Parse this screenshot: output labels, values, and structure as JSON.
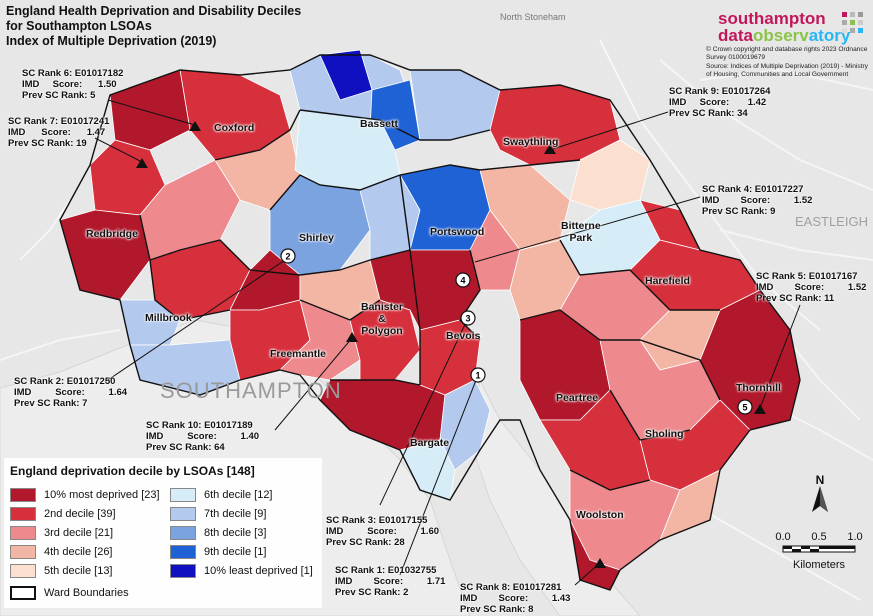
{
  "title": {
    "line1": "England Health Deprivation and Disability Deciles",
    "line2": "for Southampton LSOAs",
    "line3": "Index of Multiple Deprivation (2019)"
  },
  "logo": {
    "line1": "southampton",
    "line2a": "data",
    "line2b": "observ",
    "line2c": "atory"
  },
  "credit": {
    "line1": "© Crown copyright and database rights 2023 Ordnance Survey 0100019679",
    "line2": "Source: Indices of Multiple Deprivation (2019) - Ministry of Housing, Communities and Local Government"
  },
  "wards": {
    "coxford": "Coxford",
    "bassett": "Bassett",
    "swaythling": "Swaythling",
    "redbridge": "Redbridge",
    "shirley": "Shirley",
    "portswood": "Portswood",
    "bitterne1": "Bitterne",
    "bitterne2": "Park",
    "harefield": "Harefield",
    "millbrook": "Millbrook",
    "banister1": "Banister",
    "banister2": "&",
    "banister3": "Polygon",
    "freemantle": "Freemantle",
    "bevois": "Bevois",
    "thornhill": "Thornhill",
    "peartree": "Peartree",
    "sholing": "Sholing",
    "bargate": "Bargate",
    "woolston": "Woolston"
  },
  "basemap_labels": {
    "southampton": "SOUTHAMPTON",
    "eastleigh": "EASTLEIGH",
    "north_stoneham": "North Stoneham"
  },
  "annotations": {
    "r6": {
      "l1": "SC Rank 6: E01017182",
      "l2a": "IMD",
      "l2b": "Score:",
      "l2c": "1.50",
      "l3": "Prev SC Rank: 5"
    },
    "r7": {
      "l1": "SC Rank 7: E01017241",
      "l2a": "IMD",
      "l2b": "Score:",
      "l2c": "1.47",
      "l3": "Prev SC Rank: 19"
    },
    "r9": {
      "l1": "SC Rank 9: E01017264",
      "l2a": "IMD",
      "l2b": "Score:",
      "l2c": "1.42",
      "l3": "Prev SC Rank: 34"
    },
    "r4": {
      "l1": "SC Rank 4: E01017227",
      "l2a": "IMD",
      "l2b": "Score:",
      "l2c": "1.52",
      "l3": "Prev SC Rank: 9"
    },
    "r5": {
      "l1": "SC Rank 5: E01017167",
      "l2a": "IMD",
      "l2b": "Score:",
      "l2c": "1.52",
      "l3": "Prev SC Rank: 11"
    },
    "r2": {
      "l1": "SC Rank 2: E01017250",
      "l2a": "IMD",
      "l2b": "Score:",
      "l2c": "1.64",
      "l3": "Prev SC Rank: 7"
    },
    "r10": {
      "l1": "SC Rank 10: E01017189",
      "l2a": "IMD",
      "l2b": "Score:",
      "l2c": "1.40",
      "l3": "Prev SC Rank: 64"
    },
    "r3": {
      "l1": "SC Rank 3: E01017155",
      "l2a": "IMD",
      "l2b": "Score:",
      "l2c": "1.60",
      "l3": "Prev SC Rank: 28"
    },
    "r1": {
      "l1": "SC Rank 1: E01032755",
      "l2a": "IMD",
      "l2b": "Score:",
      "l2c": "1.71",
      "l3": "Prev SC Rank: 2"
    },
    "r8": {
      "l1": "SC Rank 8: E01017281",
      "l2a": "IMD",
      "l2b": "Score:",
      "l2c": "1.43",
      "l3": "Prev SC Rank: 8"
    }
  },
  "markers": {
    "m1": "1",
    "m2": "2",
    "m3": "3",
    "m4": "4",
    "m5": "5"
  },
  "legend": {
    "title": "England deprivation decile by LSOAs [148]",
    "items": [
      {
        "label": "10% most deprived [23]",
        "color": "#b2182b"
      },
      {
        "label": "2nd decile [39]",
        "color": "#d6303c"
      },
      {
        "label": "3rd decile [21]",
        "color": "#ee8a8e"
      },
      {
        "label": "4th decile [26]",
        "color": "#f4b6a4"
      },
      {
        "label": "5th decile [13]",
        "color": "#fbe0d0"
      },
      {
        "label": "6th decile [12]",
        "color": "#d6ecf7"
      },
      {
        "label": "7th decile [9]",
        "color": "#b3c9ee"
      },
      {
        "label": "8th decile [3]",
        "color": "#7ba3e0"
      },
      {
        "label": "9th decile [1]",
        "color": "#1f62d6"
      },
      {
        "label": "10% least deprived [1]",
        "color": "#1010c0"
      }
    ],
    "ward_boundaries": "Ward Boundaries"
  },
  "scale": {
    "north": "N",
    "t0": "0.0",
    "t1": "0.5",
    "t2": "1.0",
    "unit": "Kilometers"
  }
}
